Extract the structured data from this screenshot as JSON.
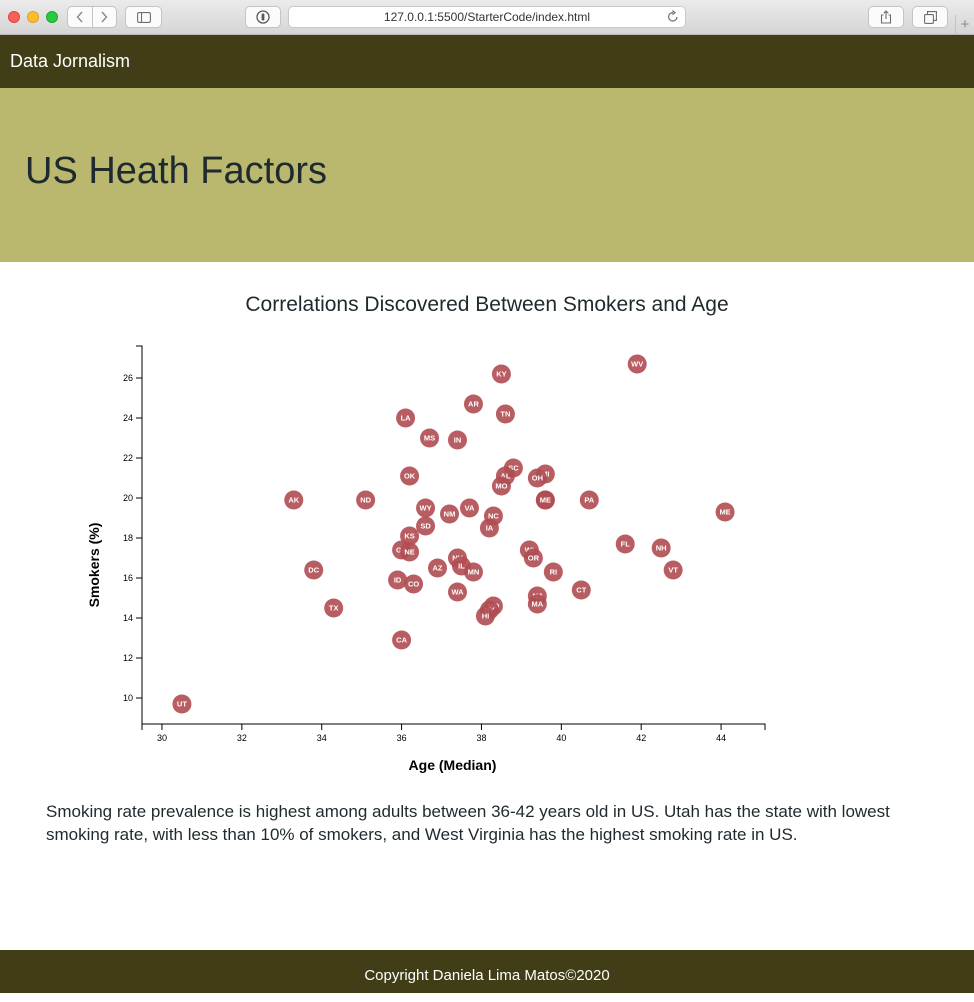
{
  "browser": {
    "url": "127.0.0.1:5500/StarterCode/index.html",
    "plus_label": "+"
  },
  "navbar": {
    "brand": "Data Jornalism"
  },
  "hero": {
    "title": "US Heath Factors"
  },
  "chart_data": {
    "type": "scatter",
    "title": "Correlations Discovered Between Smokers and Age",
    "xlabel": "Age (Median)",
    "ylabel": "Smokers (%)",
    "xlim": [
      29.5,
      45.1
    ],
    "ylim": [
      8.7,
      27.6
    ],
    "xticks": [
      30,
      32,
      34,
      36,
      38,
      40,
      42,
      44
    ],
    "yticks": [
      10,
      12,
      14,
      16,
      18,
      20,
      22,
      24,
      26
    ],
    "marker_color": "#b04d52",
    "label_color": "#ffffff",
    "points": [
      {
        "abbr": "UT",
        "x": 30.5,
        "y": 9.7
      },
      {
        "abbr": "WV",
        "x": 41.9,
        "y": 26.7
      },
      {
        "abbr": "KY",
        "x": 38.5,
        "y": 26.2
      },
      {
        "abbr": "AR",
        "x": 37.8,
        "y": 24.7
      },
      {
        "abbr": "TN",
        "x": 38.6,
        "y": 24.2
      },
      {
        "abbr": "LA",
        "x": 36.1,
        "y": 24.0
      },
      {
        "abbr": "MS",
        "x": 36.7,
        "y": 23.0
      },
      {
        "abbr": "IN",
        "x": 37.4,
        "y": 22.9
      },
      {
        "abbr": "SC",
        "x": 38.8,
        "y": 21.5
      },
      {
        "abbr": "MI",
        "x": 39.6,
        "y": 21.2
      },
      {
        "abbr": "AL",
        "x": 38.6,
        "y": 21.1
      },
      {
        "abbr": "OH",
        "x": 39.4,
        "y": 21.0
      },
      {
        "abbr": "OK",
        "x": 36.2,
        "y": 21.1
      },
      {
        "abbr": "MO",
        "x": 38.5,
        "y": 20.6
      },
      {
        "abbr": "AK",
        "x": 33.3,
        "y": 19.9
      },
      {
        "abbr": "ND",
        "x": 35.1,
        "y": 19.9
      },
      {
        "abbr": "DE",
        "x": 39.6,
        "y": 19.9
      },
      {
        "abbr": "ME",
        "x": 39.6,
        "y": 19.9
      },
      {
        "abbr": "PA",
        "x": 40.7,
        "y": 19.9
      },
      {
        "abbr": "ME",
        "x": 44.1,
        "y": 19.3
      },
      {
        "abbr": "WY",
        "x": 36.6,
        "y": 19.5
      },
      {
        "abbr": "VA",
        "x": 37.7,
        "y": 19.5
      },
      {
        "abbr": "NM",
        "x": 37.2,
        "y": 19.2
      },
      {
        "abbr": "NC",
        "x": 38.3,
        "y": 19.1
      },
      {
        "abbr": "SD",
        "x": 36.6,
        "y": 18.6
      },
      {
        "abbr": "IA",
        "x": 38.2,
        "y": 18.5
      },
      {
        "abbr": "KS",
        "x": 36.2,
        "y": 18.1
      },
      {
        "abbr": "FL",
        "x": 41.6,
        "y": 17.7
      },
      {
        "abbr": "NH",
        "x": 42.5,
        "y": 17.5
      },
      {
        "abbr": "GA",
        "x": 36.0,
        "y": 17.4
      },
      {
        "abbr": "NE",
        "x": 36.2,
        "y": 17.3
      },
      {
        "abbr": "WI",
        "x": 39.2,
        "y": 17.4
      },
      {
        "abbr": "OR",
        "x": 39.3,
        "y": 17.0
      },
      {
        "abbr": "NV",
        "x": 37.4,
        "y": 17.0
      },
      {
        "abbr": "IL",
        "x": 37.5,
        "y": 16.6
      },
      {
        "abbr": "AZ",
        "x": 36.9,
        "y": 16.5
      },
      {
        "abbr": "DC",
        "x": 33.8,
        "y": 16.4
      },
      {
        "abbr": "VT",
        "x": 42.8,
        "y": 16.4
      },
      {
        "abbr": "MN",
        "x": 37.8,
        "y": 16.3
      },
      {
        "abbr": "RI",
        "x": 39.8,
        "y": 16.3
      },
      {
        "abbr": "ID",
        "x": 35.9,
        "y": 15.9
      },
      {
        "abbr": "CO",
        "x": 36.3,
        "y": 15.7
      },
      {
        "abbr": "CT",
        "x": 40.5,
        "y": 15.4
      },
      {
        "abbr": "WA",
        "x": 37.4,
        "y": 15.3
      },
      {
        "abbr": "NJ",
        "x": 39.4,
        "y": 15.1
      },
      {
        "abbr": "MA",
        "x": 39.4,
        "y": 14.7
      },
      {
        "abbr": "MD",
        "x": 38.3,
        "y": 14.6
      },
      {
        "abbr": "NY",
        "x": 38.2,
        "y": 14.4
      },
      {
        "abbr": "HI",
        "x": 38.1,
        "y": 14.1
      },
      {
        "abbr": "TX",
        "x": 34.3,
        "y": 14.5
      },
      {
        "abbr": "CA",
        "x": 36.0,
        "y": 12.9
      }
    ]
  },
  "summary": {
    "text": "Smoking rate prevalence is highest among adults between 36-42 years old in US. Utah has the state with lowest smoking rate, with less than 10% of smokers, and West Virginia has the highest smoking rate in US."
  },
  "footer": {
    "text": "Copyright Daniela Lima Matos©2020"
  }
}
